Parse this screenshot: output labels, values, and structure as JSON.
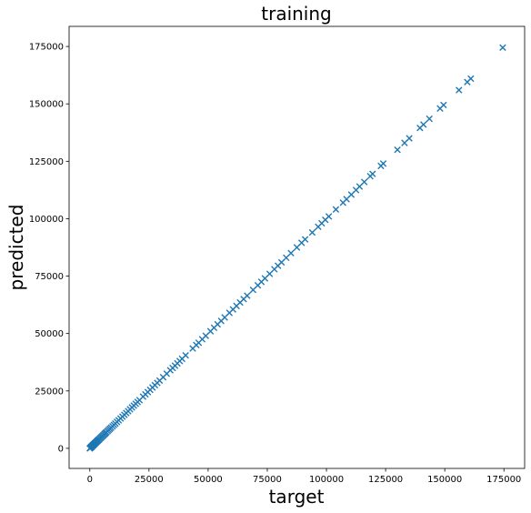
{
  "chart_data": {
    "type": "scatter",
    "title": "training",
    "xlabel": "target",
    "ylabel": "predicted",
    "xlim": [
      -8750,
      183750
    ],
    "ylim": [
      -8750,
      183750
    ],
    "xticks": [
      0,
      25000,
      50000,
      75000,
      100000,
      125000,
      150000,
      175000
    ],
    "yticks": [
      0,
      25000,
      50000,
      75000,
      100000,
      125000,
      150000,
      175000
    ],
    "tick_labels": [
      "0",
      "25000",
      "50000",
      "75000",
      "100000",
      "125000",
      "150000",
      "175000"
    ],
    "grid": false,
    "marker": "x",
    "color": "#1f77b4",
    "series": [
      {
        "x": [
          0,
          100,
          200,
          300,
          400,
          500,
          600,
          700,
          800,
          900,
          1000,
          1200,
          1400,
          1600,
          1800,
          2000,
          2300,
          2600,
          2900,
          3200,
          3500,
          3800,
          4200,
          4600,
          5000,
          5400,
          5800,
          6200,
          6600,
          7000,
          7500,
          8000,
          8500,
          9000,
          9600,
          10200,
          10800,
          11500,
          12200,
          13000,
          13800,
          14600,
          15400,
          16200,
          17000,
          17800,
          18600,
          19400,
          20200,
          21000,
          22500,
          23500,
          24500,
          25500,
          26500,
          27500,
          28500,
          29500,
          31000,
          32500,
          34000,
          35000,
          36000,
          37000,
          38000,
          39000,
          40500,
          43500,
          45000,
          46000,
          47500,
          49000,
          51000,
          52500,
          54000,
          55500,
          57000,
          59000,
          60500,
          62000,
          63500,
          65000,
          66500,
          69000,
          71000,
          72500,
          74000,
          76000,
          78000,
          79500,
          81000,
          83000,
          85000,
          87500,
          89500,
          91000,
          94000,
          96500,
          98000,
          99500,
          101000,
          104000,
          107000,
          108500,
          110500,
          112500,
          114000,
          116000,
          118500,
          119500,
          123000,
          124000,
          130000,
          133000,
          135000,
          139500,
          141000,
          143500,
          148000,
          149500,
          156000,
          159500,
          161000,
          174500
        ],
        "y": [
          0,
          100,
          200,
          300,
          400,
          500,
          600,
          700,
          800,
          900,
          1000,
          1200,
          1400,
          1600,
          1800,
          2000,
          2300,
          2600,
          2900,
          3200,
          3500,
          3800,
          4200,
          4600,
          5000,
          5400,
          5800,
          6200,
          6600,
          7000,
          7500,
          8000,
          8500,
          9000,
          9600,
          10200,
          10800,
          11500,
          12200,
          13000,
          13800,
          14600,
          15400,
          16200,
          17000,
          17800,
          18600,
          19400,
          20200,
          21000,
          22500,
          23500,
          24500,
          25500,
          26500,
          27500,
          28500,
          29500,
          31000,
          32500,
          34000,
          35000,
          36000,
          37000,
          38000,
          39000,
          40500,
          43500,
          45000,
          46000,
          47500,
          49000,
          51000,
          52500,
          54000,
          55500,
          57000,
          59000,
          60500,
          62000,
          63500,
          65000,
          66500,
          69000,
          71000,
          72500,
          74000,
          76000,
          78000,
          79500,
          81000,
          83000,
          85000,
          87500,
          89500,
          91000,
          94000,
          96500,
          98000,
          99500,
          101000,
          104000,
          107000,
          108500,
          110500,
          112500,
          114000,
          116000,
          118500,
          119500,
          123000,
          124000,
          130000,
          133000,
          135000,
          139500,
          141000,
          143500,
          148000,
          149500,
          156000,
          159500,
          161000,
          174500
        ]
      }
    ]
  }
}
